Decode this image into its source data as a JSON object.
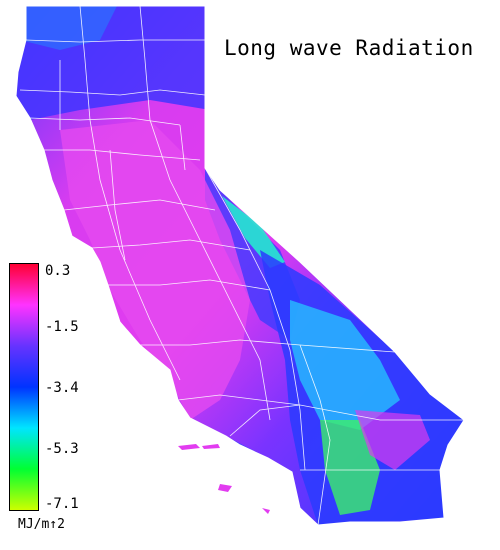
{
  "title": "Long wave Radiation",
  "legend": {
    "ticks": [
      "0.3",
      "-1.5",
      "-3.4",
      "-5.3",
      "-7.1"
    ],
    "unit": "MJ/m↑2",
    "colors": [
      "#ff0033",
      "#ff33ff",
      "#6633ff",
      "#0033ff",
      "#00e5ff",
      "#00ff33",
      "#ccff00"
    ]
  },
  "map": {
    "region": "california-counties",
    "fill_colors": {
      "high": "#e23cf0",
      "mid": "#7a33ff",
      "low": "#2a3bff",
      "lower": "#26b8ff",
      "lowest": "#30f06a"
    }
  }
}
